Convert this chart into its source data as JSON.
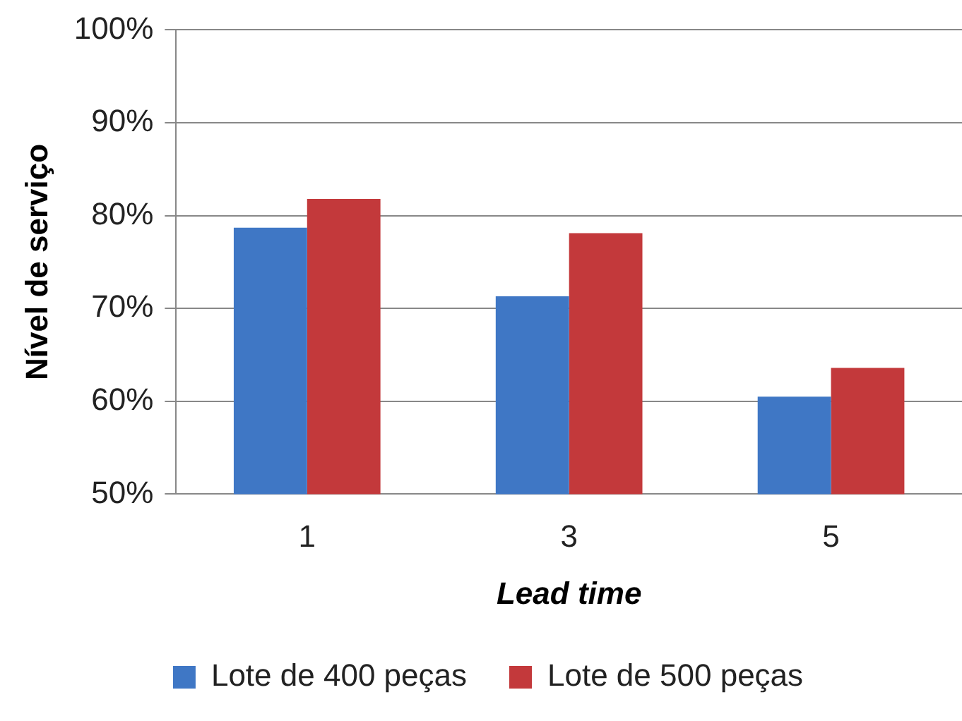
{
  "chart_data": {
    "type": "bar",
    "xlabel": "Lead time",
    "ylabel": "Nível de serviço",
    "categories": [
      "1",
      "3",
      "5"
    ],
    "series": [
      {
        "name": "Lote de 400 peças",
        "color": "#3f77c5",
        "values": [
          78.7,
          71.3,
          60.5
        ]
      },
      {
        "name": "Lote de 500 peças",
        "color": "#c3393b",
        "values": [
          81.8,
          78.1,
          63.6
        ]
      }
    ],
    "ylim": [
      50,
      100
    ],
    "yticks": [
      {
        "value": 50,
        "label": "50%"
      },
      {
        "value": 60,
        "label": "60%"
      },
      {
        "value": 70,
        "label": "70%"
      },
      {
        "value": 80,
        "label": "80%"
      },
      {
        "value": 90,
        "label": "90%"
      },
      {
        "value": 100,
        "label": "100%"
      }
    ],
    "grid": "y",
    "legend": "bottom"
  }
}
